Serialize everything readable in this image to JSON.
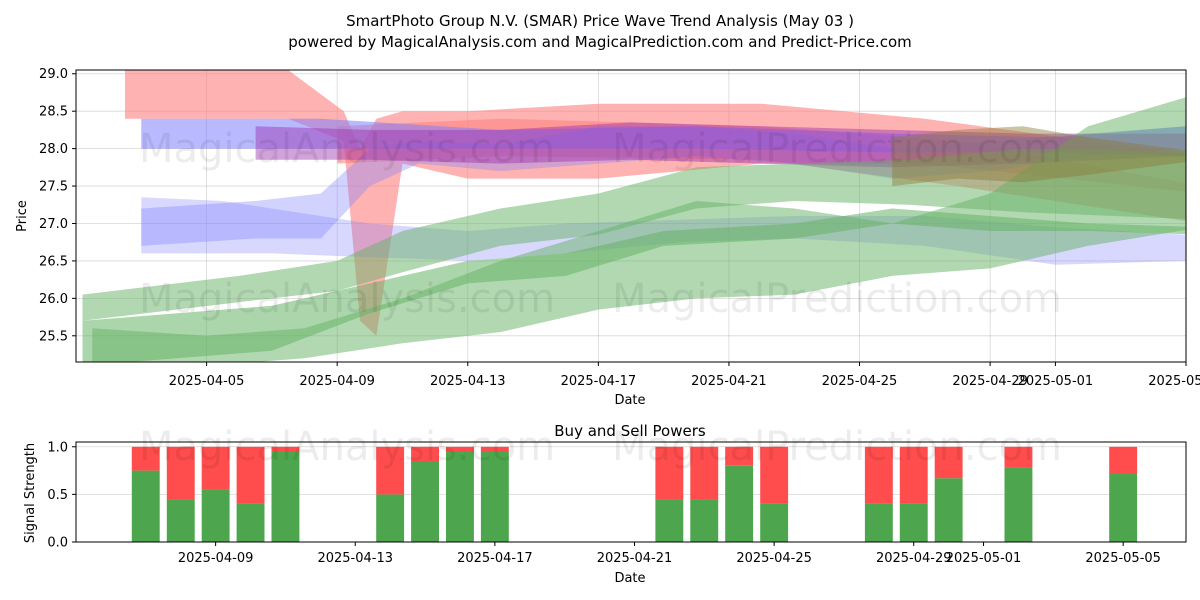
{
  "chart_data": [
    {
      "type": "area",
      "title": "SmartPhoto Group N.V. (SMAR) Price Wave Trend Analysis (May 03 )",
      "subtitle": "powered by MagicalAnalysis.com and MagicalPrediction.com and Predict-Price.com",
      "xlabel": "Date",
      "ylabel": "Price",
      "x_ticks": [
        "2025-04-05",
        "2025-04-09",
        "2025-04-13",
        "2025-04-17",
        "2025-04-21",
        "2025-04-25",
        "2025-04-29",
        "2025-05-01",
        "2025-05-05"
      ],
      "y_ticks": [
        "25.5",
        "26.0",
        "26.5",
        "27.0",
        "27.5",
        "28.0",
        "28.5",
        "29.0"
      ],
      "ylim": [
        25.15,
        29.05
      ],
      "xlim_days": [
        -1.0,
        33.0
      ],
      "x_origin": "2025-04-02",
      "watermarks": [
        "MagicalAnalysis.com",
        "MagicalPrediction.com"
      ],
      "series": [
        {
          "name": "red wave 1",
          "color": "#ff7f7f",
          "opacity": 0.6,
          "x": [
            0.5,
            5.5,
            7.2,
            7.7,
            8.2,
            9.0,
            11.0,
            15.0,
            20.0,
            25.0,
            33.5
          ],
          "lower": [
            28.4,
            28.4,
            28.1,
            25.7,
            25.5,
            27.8,
            27.6,
            27.6,
            27.8,
            27.8,
            27.4
          ],
          "upper": [
            29.05,
            29.05,
            28.5,
            28.0,
            28.4,
            28.5,
            28.5,
            28.6,
            28.6,
            28.4,
            27.9
          ]
        },
        {
          "name": "red wave 2",
          "color": "#ff7f7f",
          "opacity": 0.55,
          "x": [
            7.0,
            12.0,
            20.0,
            26.0,
            33.5
          ],
          "lower": [
            27.8,
            27.9,
            27.85,
            27.5,
            27.0
          ],
          "upper": [
            28.3,
            28.4,
            28.3,
            28.1,
            27.5
          ]
        },
        {
          "name": "blue wave 1",
          "color": "#7f7fff",
          "opacity": 0.55,
          "x": [
            1.0,
            6.5,
            12.0,
            18.0,
            24.0,
            29.0,
            33.0
          ],
          "lower": [
            28.0,
            28.0,
            28.0,
            28.0,
            27.95,
            27.95,
            27.9
          ],
          "upper": [
            28.4,
            28.4,
            28.25,
            28.3,
            28.2,
            28.15,
            28.3
          ]
        },
        {
          "name": "blue wave 2",
          "color": "#7f7fff",
          "opacity": 0.3,
          "x": [
            1.0,
            3.5,
            5.0,
            8.0,
            11.0,
            14.0,
            17.5,
            21.0,
            25.0,
            29.0,
            33.0
          ],
          "lower": [
            26.6,
            26.6,
            26.6,
            26.55,
            26.5,
            26.6,
            26.75,
            26.8,
            26.7,
            26.45,
            26.5
          ],
          "upper": [
            27.35,
            27.3,
            27.2,
            27.0,
            26.9,
            27.0,
            27.05,
            27.1,
            27.1,
            26.95,
            26.85
          ]
        },
        {
          "name": "blue wave 3",
          "color": "#7f7fff",
          "opacity": 0.35,
          "x": [
            1.0,
            4.5,
            6.5,
            8.0,
            9.5,
            12.0,
            15.0,
            18.0,
            21.0,
            24.0,
            27.0,
            30.0,
            33.0
          ],
          "lower": [
            26.7,
            26.8,
            26.8,
            27.5,
            27.8,
            27.7,
            27.8,
            27.9,
            27.8,
            27.6,
            27.7,
            27.9,
            28.0
          ],
          "upper": [
            27.2,
            27.3,
            27.4,
            28.0,
            28.1,
            28.05,
            28.3,
            28.3,
            28.2,
            28.0,
            28.1,
            28.2,
            28.3
          ]
        },
        {
          "name": "purple wave",
          "color": "#9b30b0",
          "opacity": 0.45,
          "x": [
            4.5,
            8.0,
            12.0,
            16.0,
            20.0,
            24.0,
            28.0,
            33.0
          ],
          "lower": [
            27.85,
            27.85,
            27.8,
            27.85,
            27.8,
            27.75,
            27.8,
            27.9
          ],
          "upper": [
            28.3,
            28.25,
            28.25,
            28.35,
            28.3,
            28.25,
            28.2,
            28.2
          ]
        },
        {
          "name": "green wave 1",
          "color": "#66b266",
          "opacity": 0.55,
          "x": [
            -0.8,
            5.0,
            8.0,
            11.0,
            14.0,
            17.0,
            21.0,
            24.0,
            27.0,
            30.0,
            33.5
          ],
          "lower": [
            25.1,
            25.3,
            25.8,
            26.2,
            26.3,
            26.7,
            26.8,
            27.0,
            26.9,
            26.9,
            26.85
          ],
          "upper": [
            25.7,
            25.9,
            26.2,
            26.5,
            26.6,
            26.9,
            27.0,
            27.2,
            27.1,
            27.0,
            26.95
          ]
        },
        {
          "name": "green wave 2",
          "color": "#66b266",
          "opacity": 0.5,
          "x": [
            -0.8,
            4.0,
            7.0,
            9.0,
            12.0,
            15.0,
            18.0,
            21.0,
            24.5,
            28.0,
            33.5
          ],
          "lower": [
            25.7,
            25.95,
            26.1,
            26.35,
            26.7,
            26.85,
            27.2,
            27.3,
            27.25,
            27.15,
            27.05
          ],
          "upper": [
            26.05,
            26.3,
            26.5,
            26.9,
            27.2,
            27.4,
            27.75,
            27.8,
            27.85,
            28.0,
            27.95
          ]
        },
        {
          "name": "green wave 3",
          "color": "#66b266",
          "opacity": 0.5,
          "x": [
            -0.5,
            3.0,
            6.0,
            9.0,
            12.0,
            15.0,
            18.0,
            21.0,
            24.0,
            27.0,
            30.0,
            33.5
          ],
          "lower": [
            25.1,
            25.1,
            25.2,
            25.4,
            25.55,
            25.85,
            26.0,
            26.05,
            26.3,
            26.4,
            26.7,
            26.95
          ],
          "upper": [
            25.6,
            25.5,
            25.6,
            26.0,
            26.5,
            26.9,
            27.3,
            27.2,
            27.0,
            27.4,
            28.3,
            28.75
          ]
        },
        {
          "name": "olive wave",
          "color": "#8b7a3a",
          "opacity": 0.45,
          "x": [
            24.0,
            26.0,
            28.0,
            30.0,
            33.5
          ],
          "lower": [
            27.5,
            27.6,
            27.55,
            27.65,
            27.85
          ],
          "upper": [
            28.15,
            28.25,
            28.3,
            28.15,
            27.95
          ]
        }
      ]
    },
    {
      "type": "bar",
      "title": "Buy and Sell Powers",
      "xlabel": "Date",
      "ylabel": "Signal Strength",
      "ylim": [
        0.0,
        1.05
      ],
      "y_ticks": [
        "0.0",
        "0.5",
        "1.0"
      ],
      "x_ticks": [
        "2025-04-09",
        "2025-04-13",
        "2025-04-17",
        "2025-04-21",
        "2025-04-25",
        "2025-04-29",
        "2025-05-01",
        "2025-05-05"
      ],
      "xlim_days": [
        3.0,
        34.8
      ],
      "x_origin": "2025-04-02",
      "buy_color": "#4da64d",
      "sell_color": "#ff4d4d",
      "categories": [
        "2025-04-07",
        "2025-04-08",
        "2025-04-09",
        "2025-04-10",
        "2025-04-11",
        "2025-04-14",
        "2025-04-15",
        "2025-04-16",
        "2025-04-17",
        "2025-04-22",
        "2025-04-23",
        "2025-04-24",
        "2025-04-25",
        "2025-04-28",
        "2025-04-29",
        "2025-04-30",
        "2025-05-02",
        "2025-05-05"
      ],
      "day_offsets": [
        5,
        6,
        7,
        8,
        9,
        12,
        13,
        14,
        15,
        20,
        21,
        22,
        23,
        26,
        27,
        28,
        30,
        33
      ],
      "series": [
        {
          "name": "Buy",
          "values": [
            0.75,
            0.45,
            0.55,
            0.4,
            0.95,
            0.5,
            0.85,
            0.95,
            0.95,
            0.45,
            0.45,
            0.8,
            0.4,
            0.4,
            0.4,
            0.67,
            0.78,
            0.72
          ]
        },
        {
          "name": "Sell",
          "values": [
            0.25,
            0.55,
            0.45,
            0.6,
            0.05,
            0.5,
            0.15,
            0.05,
            0.05,
            0.55,
            0.55,
            0.2,
            0.6,
            0.6,
            0.6,
            0.33,
            0.22,
            0.28
          ]
        }
      ]
    }
  ]
}
